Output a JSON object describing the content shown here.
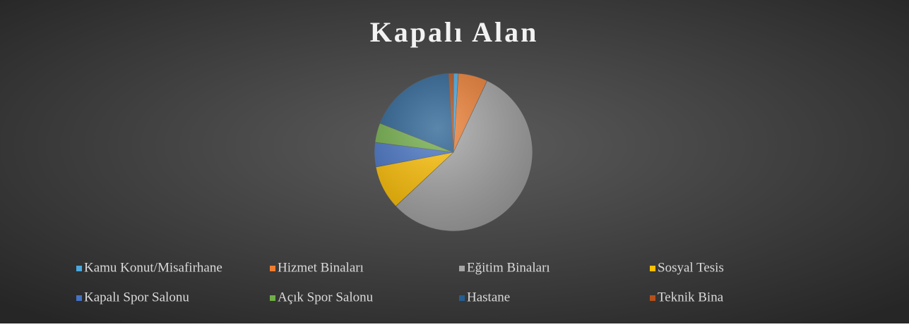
{
  "chart_data": {
    "type": "pie",
    "title": "Kapalı Alan",
    "categories": [
      "Kamu Konut/Misafirhane",
      "Hizmet Binaları",
      "Eğitim Binaları",
      "Sosyal Tesis",
      "Kapalı Spor Salonu",
      "Açık Spor Salonu",
      "Hastane",
      "Teknik Bina"
    ],
    "values": [
      1,
      6,
      56,
      9,
      5,
      4,
      18,
      1
    ],
    "colors": [
      "#4aa8e0",
      "#ed7d31",
      "#a5a5a5",
      "#ffc000",
      "#4472c4",
      "#70ad47",
      "#255e91",
      "#b4501a"
    ],
    "legend": "bottom"
  }
}
